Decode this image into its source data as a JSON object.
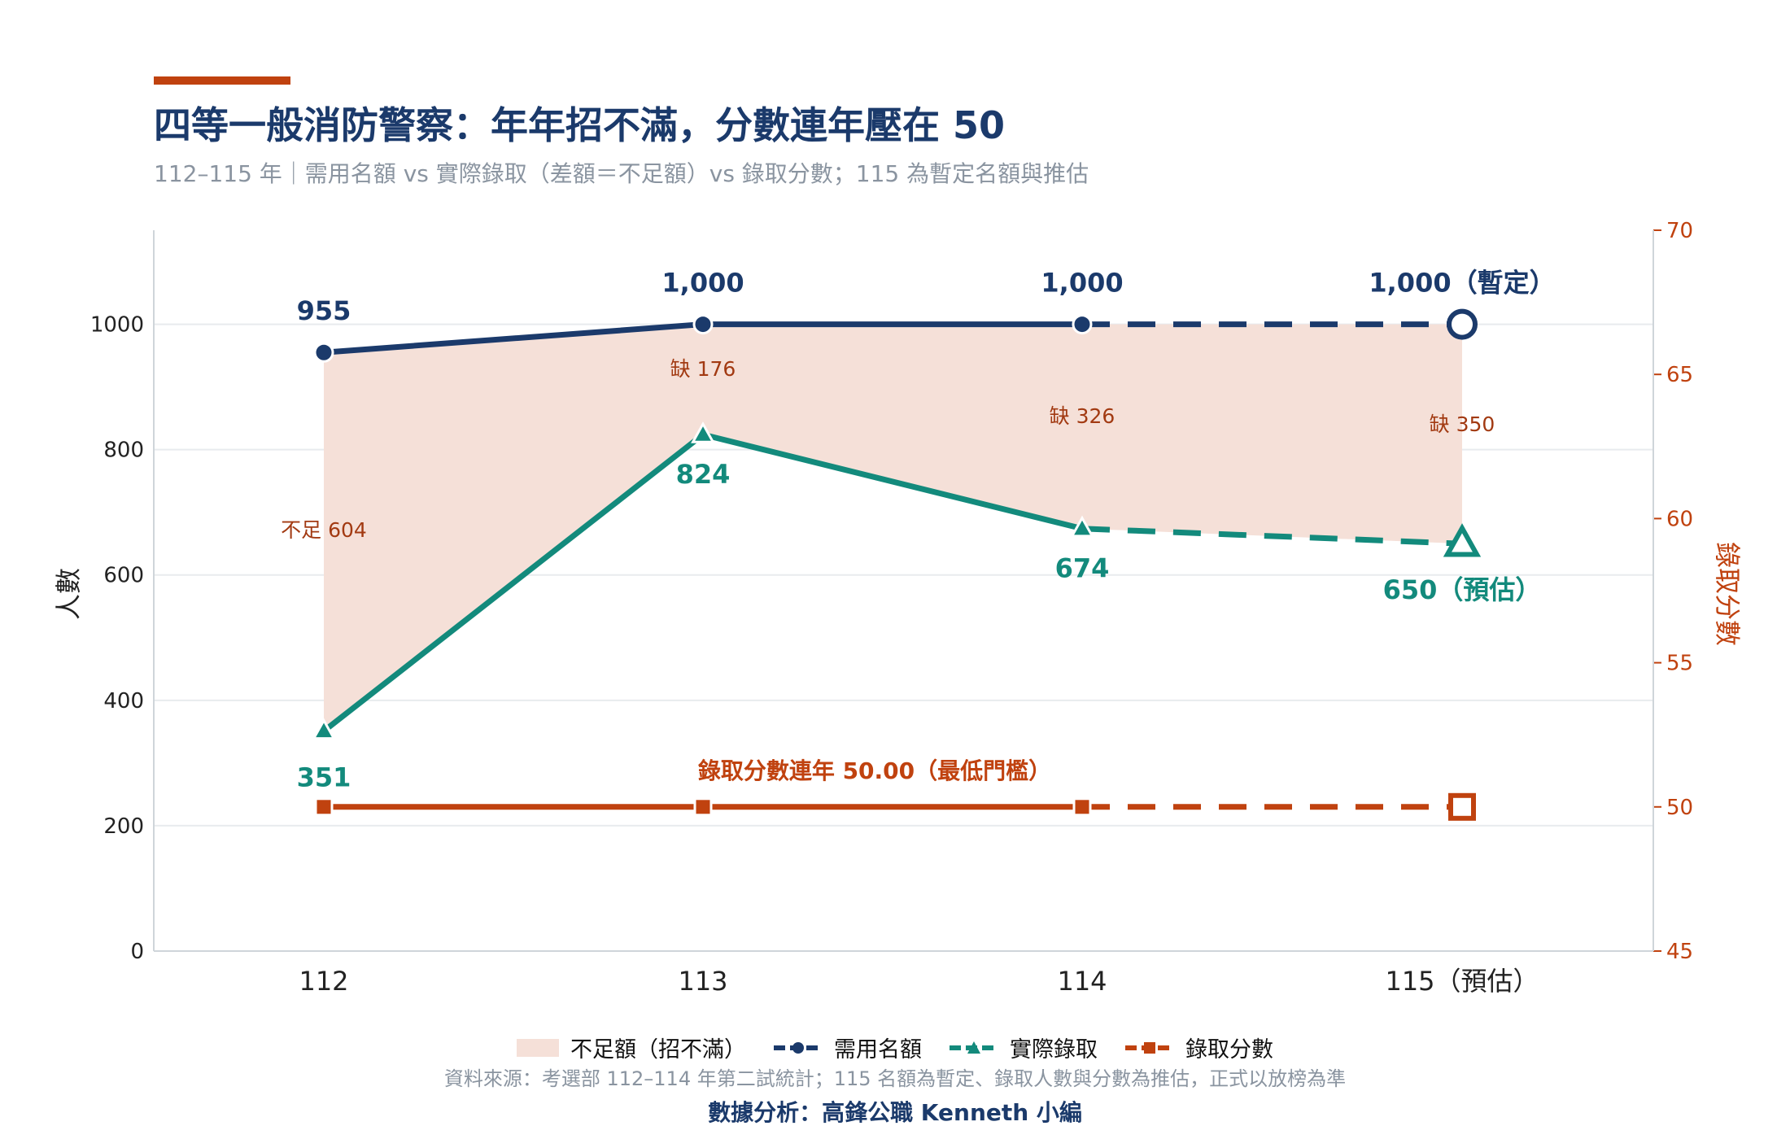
{
  "header": {
    "title": "四等一般消防警察：年年招不滿，分數連年壓在 50",
    "subtitle": "112–115 年｜需用名額 vs 實際錄取（差額＝不足額）vs 錄取分數；115 為暫定名額與推估"
  },
  "chart_data": {
    "type": "line",
    "categories": [
      "112",
      "113",
      "114",
      "115（預估）"
    ],
    "y_left": {
      "label": "人數",
      "ticks": [
        "0",
        "200",
        "400",
        "600",
        "800",
        "1000"
      ],
      "ylim": [
        0,
        1150
      ]
    },
    "y_right": {
      "label": "錄取分數",
      "ticks": [
        "45",
        "50",
        "55",
        "60",
        "65",
        "70"
      ],
      "ylim": [
        45,
        70
      ]
    },
    "series": [
      {
        "name": "需用名額",
        "axis": "left",
        "values": [
          955,
          1000,
          1000,
          1000
        ],
        "labels": [
          "955",
          "1,000",
          "1,000",
          "1,000（暫定）"
        ],
        "color": "#1b3a6b",
        "marker": "circle",
        "dashed_from_index": 2
      },
      {
        "name": "實際錄取",
        "axis": "left",
        "values": [
          351,
          824,
          674,
          650
        ],
        "labels": [
          "351",
          "824",
          "674",
          "650（預估）"
        ],
        "color": "#138a7c",
        "marker": "triangle",
        "dashed_from_index": 2
      },
      {
        "name": "錄取分數",
        "axis": "right",
        "values": [
          50,
          50,
          50,
          50
        ],
        "color": "#c0420f",
        "marker": "square",
        "dashed_from_index": 2
      }
    ],
    "shortfall": {
      "name": "不足額（招不滿）",
      "color": "#f5e0d8",
      "labels": [
        "不足 604",
        "缺 176",
        "缺 326",
        "缺 350"
      ]
    },
    "annotation": "錄取分數連年 50.00（最低門檻）",
    "grid": "horizontal"
  },
  "legend": [
    "不足額（招不滿）",
    "需用名額",
    "實際錄取",
    "錄取分數"
  ],
  "footer": {
    "source": "資料來源：考選部 112–114 年第二試統計；115 名額為暫定、錄取人數與分數為推估，正式以放榜為準",
    "credit": "數據分析：高鋒公職 Kenneth 小編"
  }
}
